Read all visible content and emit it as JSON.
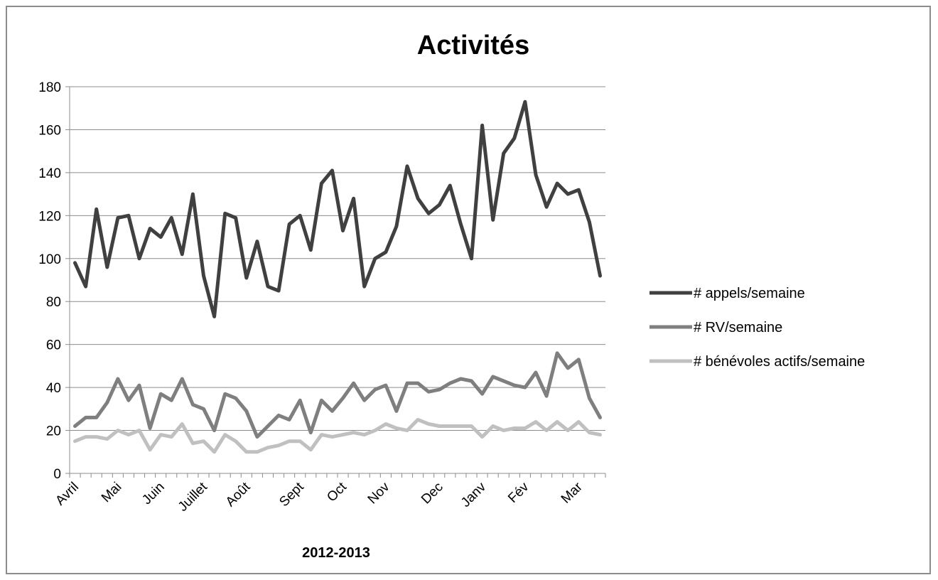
{
  "chart_data": {
    "type": "line",
    "title": "Activités",
    "xlabel": "2012-2013",
    "ylabel": "",
    "ylim": [
      0,
      180
    ],
    "yticks": [
      0,
      20,
      40,
      60,
      80,
      100,
      120,
      140,
      160,
      180
    ],
    "grid": true,
    "legend_position": "right",
    "month_labels": [
      "Avril",
      "Mai",
      "Juin",
      "Juillet",
      "Août",
      "Sept",
      "Oct",
      "Nov",
      "Dec",
      "Janv",
      "Fév",
      "Mar"
    ],
    "month_start_index": [
      0,
      4,
      8,
      12,
      16,
      21,
      25,
      29,
      34,
      38,
      42,
      47
    ],
    "series": [
      {
        "name": "# appels/semaine",
        "color": "#404040",
        "values": [
          98,
          87,
          123,
          96,
          119,
          120,
          100,
          114,
          110,
          119,
          102,
          130,
          92,
          73,
          121,
          119,
          91,
          108,
          87,
          85,
          116,
          120,
          104,
          135,
          141,
          113,
          128,
          87,
          100,
          103,
          115,
          143,
          128,
          121,
          125,
          134,
          116,
          100,
          162,
          118,
          149,
          156,
          173,
          139,
          124,
          135,
          130,
          132,
          117,
          92
        ]
      },
      {
        "name": "# RV/semaine",
        "color": "#7f7f7f",
        "values": [
          22,
          26,
          26,
          33,
          44,
          34,
          41,
          21,
          37,
          34,
          44,
          32,
          30,
          20,
          37,
          35,
          29,
          17,
          22,
          27,
          25,
          34,
          19,
          34,
          29,
          35,
          42,
          34,
          39,
          41,
          29,
          42,
          42,
          38,
          39,
          42,
          44,
          43,
          37,
          45,
          43,
          41,
          40,
          47,
          36,
          56,
          49,
          53,
          35,
          26
        ]
      },
      {
        "name": "# bénévoles actifs/semaine",
        "color": "#c0c0c0",
        "values": [
          15,
          17,
          17,
          16,
          20,
          18,
          20,
          11,
          18,
          17,
          23,
          14,
          15,
          10,
          18,
          15,
          10,
          10,
          12,
          13,
          15,
          15,
          11,
          18,
          17,
          18,
          19,
          18,
          20,
          23,
          21,
          20,
          25,
          23,
          22,
          22,
          22,
          22,
          17,
          22,
          20,
          21,
          21,
          24,
          20,
          24,
          20,
          24,
          19,
          18
        ]
      }
    ]
  }
}
